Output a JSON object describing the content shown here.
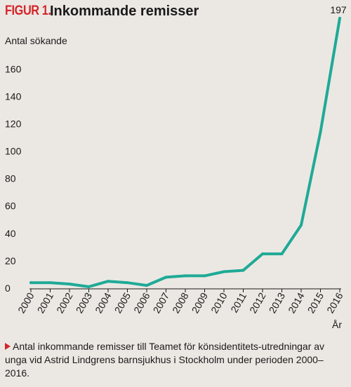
{
  "figure": {
    "label": "FIGUR 1.",
    "title": "Inkommande remisser",
    "caption": "Antal inkommande remisser till Teamet för könsidentitets-utredningar av unga vid Astrid Lindgrens barnsjukhus i Stockholm under perioden 2000–2016."
  },
  "colors": {
    "background": "#ebe8e3",
    "line": "#1faa96",
    "accent": "#d4252a",
    "axis": "#1a1a1a"
  },
  "chart_data": {
    "type": "line",
    "title": "Inkommande remisser",
    "ylabel": "Antal sökande",
    "xlabel": "År",
    "x": [
      "2000",
      "2001",
      "2002",
      "2003",
      "2004",
      "2005",
      "2006",
      "2007",
      "2008",
      "2009",
      "2010",
      "2011",
      "2012",
      "2013",
      "2014",
      "2015",
      "2016"
    ],
    "series": [
      {
        "values": [
          4,
          4,
          3,
          1,
          5,
          4,
          2,
          8,
          9,
          9,
          12,
          13,
          25,
          25,
          46,
          114,
          197
        ]
      }
    ],
    "ylim": [
      0,
      197
    ],
    "yticks": [
      0,
      20,
      40,
      60,
      80,
      100,
      120,
      140,
      160
    ],
    "annotations": [
      {
        "x": "2016",
        "text": "197"
      }
    ],
    "grid": false,
    "legend": "none"
  }
}
